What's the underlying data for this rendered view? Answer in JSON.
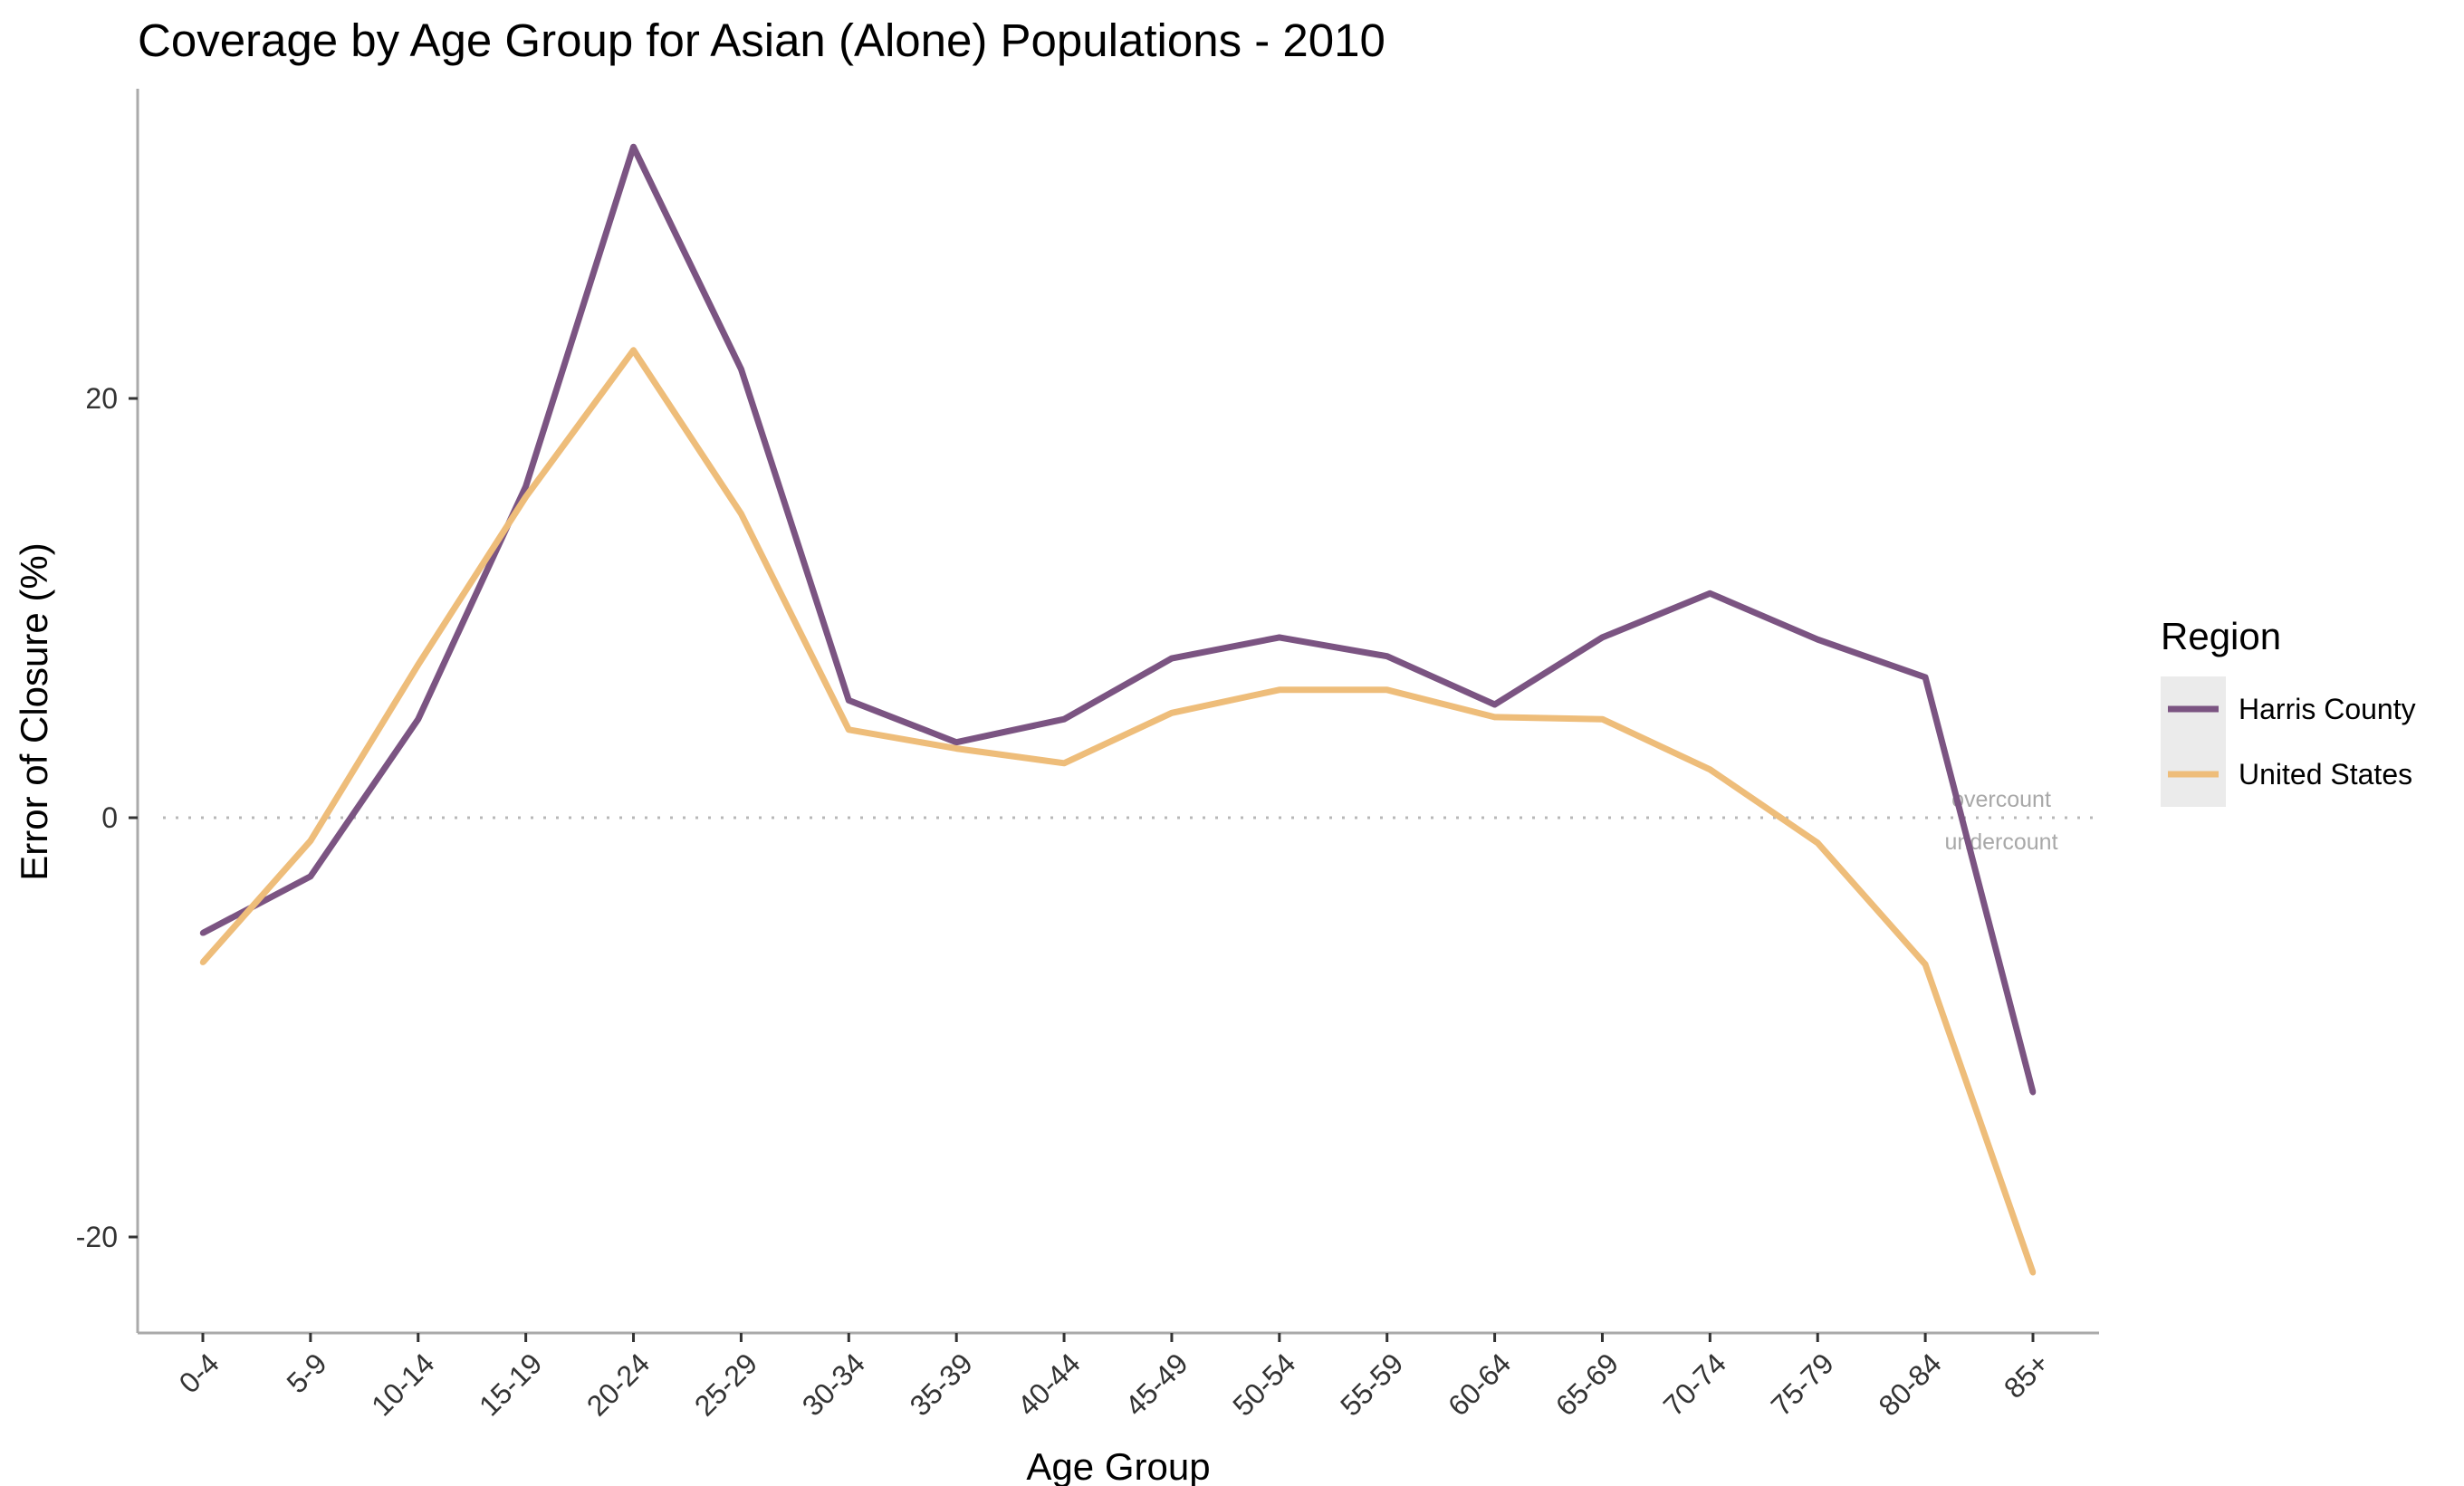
{
  "chart_data": {
    "type": "line",
    "title": "Coverage by Age Group for Asian (Alone) Populations - 2010",
    "xlabel": "Age Group",
    "ylabel": "Error of Closure (%)",
    "categories": [
      "0-4",
      "5-9",
      "10-14",
      "15-19",
      "20-24",
      "25-29",
      "30-34",
      "35-39",
      "40-44",
      "45-49",
      "50-54",
      "55-59",
      "60-64",
      "65-69",
      "70-74",
      "75-79",
      "80-84",
      "85+"
    ],
    "yticks": [
      -20,
      0,
      20
    ],
    "ylim": [
      -24.5,
      35
    ],
    "series": [
      {
        "name": "Harris County",
        "color": "#7b5482",
        "values": [
          -5.5,
          -2.8,
          4.7,
          15.8,
          32.0,
          21.4,
          5.6,
          3.6,
          4.7,
          7.6,
          8.6,
          7.7,
          5.4,
          8.6,
          10.7,
          8.5,
          6.7,
          -13.1
        ]
      },
      {
        "name": "United States",
        "color": "#eebd7a",
        "values": [
          -6.9,
          -1.1,
          7.3,
          15.3,
          22.3,
          14.5,
          4.2,
          3.3,
          2.6,
          5.0,
          6.1,
          6.1,
          4.8,
          4.7,
          2.3,
          -1.2,
          -7.0,
          -21.7
        ]
      }
    ],
    "reference_line": {
      "value": 0,
      "style": "dotted",
      "above_label": "overcount",
      "below_label": "undercount"
    },
    "legend": {
      "title": "Region",
      "placement": "right"
    },
    "grid": false
  }
}
